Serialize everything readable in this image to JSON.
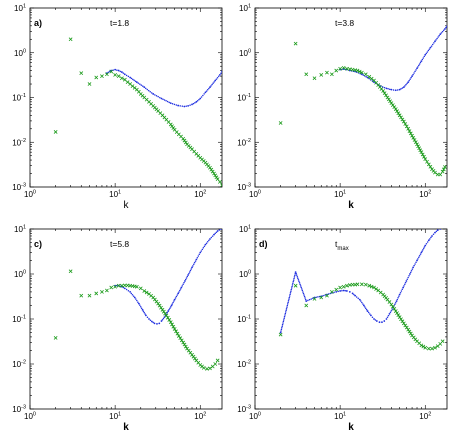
{
  "colors": {
    "blue_series": "#1f2fe0",
    "green_series": "#1a9a1a",
    "axis": "#000000"
  },
  "chart_data": [
    {
      "type": "scatter",
      "panel_label": "a)",
      "annotation": "t=1.8",
      "annotation_sub": "",
      "xlabel": "k",
      "xlabel_bold": false,
      "xscale": "log",
      "yscale": "log",
      "xlim": [
        1,
        180
      ],
      "ylim": [
        0.001,
        10
      ],
      "x_ticks": [
        "10^0",
        "10^1",
        "10^2"
      ],
      "y_ticks": [
        "10^-3",
        "10^-2",
        "10^-1",
        "10^0",
        "10^1"
      ],
      "grid": false,
      "series": [
        {
          "marker": "dot",
          "color": "#1f2fe0",
          "x": [
            8,
            9,
            10,
            11,
            12,
            13,
            15,
            18,
            22,
            28,
            35,
            45,
            55,
            65,
            72,
            80,
            90,
            100,
            115,
            130,
            150,
            170,
            180
          ],
          "y": [
            0.35,
            0.4,
            0.42,
            0.4,
            0.37,
            0.33,
            0.28,
            0.22,
            0.17,
            0.12,
            0.095,
            0.075,
            0.066,
            0.063,
            0.065,
            0.07,
            0.08,
            0.095,
            0.13,
            0.17,
            0.24,
            0.32,
            0.38
          ]
        },
        {
          "marker": "x",
          "color": "#1a9a1a",
          "x": [
            2,
            3,
            4,
            5,
            6,
            7,
            8,
            9,
            10,
            11,
            12,
            13,
            14,
            15,
            16,
            18,
            20,
            22,
            25,
            28,
            32,
            36,
            40,
            45,
            50,
            56,
            63,
            70,
            80,
            90,
            100,
            115,
            130,
            145,
            160,
            170,
            180
          ],
          "y": [
            0.017,
            2.0,
            0.35,
            0.2,
            0.28,
            0.3,
            0.33,
            0.38,
            0.32,
            0.3,
            0.27,
            0.25,
            0.22,
            0.2,
            0.18,
            0.15,
            0.12,
            0.1,
            0.08,
            0.065,
            0.05,
            0.04,
            0.032,
            0.025,
            0.019,
            0.015,
            0.012,
            0.009,
            0.007,
            0.0055,
            0.0045,
            0.0035,
            0.0027,
            0.002,
            0.0015,
            0.0013,
            0.0011
          ]
        }
      ]
    },
    {
      "type": "scatter",
      "panel_label": "",
      "annotation": "t=3.8",
      "annotation_sub": "",
      "xlabel": "k",
      "xlabel_bold": true,
      "xscale": "log",
      "yscale": "log",
      "xlim": [
        1,
        180
      ],
      "ylim": [
        0.001,
        10
      ],
      "x_ticks": [
        "10^0",
        "10^1",
        "10^2"
      ],
      "y_ticks": [
        "10^-3",
        "10^-2",
        "10^-1",
        "10^0",
        "10^1"
      ],
      "grid": false,
      "series": [
        {
          "marker": "dot",
          "color": "#1f2fe0",
          "x": [
            10,
            11,
            12,
            13,
            15,
            18,
            21,
            25,
            30,
            35,
            40,
            45,
            50,
            56,
            63,
            70,
            80,
            90,
            100,
            115,
            130,
            150,
            170,
            180
          ],
          "y": [
            0.42,
            0.43,
            0.42,
            0.4,
            0.38,
            0.33,
            0.28,
            0.22,
            0.18,
            0.16,
            0.15,
            0.145,
            0.15,
            0.17,
            0.22,
            0.3,
            0.45,
            0.65,
            0.9,
            1.3,
            1.8,
            2.6,
            3.4,
            3.9
          ]
        },
        {
          "marker": "x",
          "color": "#1a9a1a",
          "x": [
            2,
            3,
            4,
            5,
            6,
            7,
            8,
            9,
            10,
            11,
            12,
            13,
            14,
            15,
            16,
            18,
            20,
            22,
            25,
            28,
            32,
            36,
            40,
            45,
            50,
            56,
            63,
            70,
            80,
            90,
            100,
            110,
            120,
            130,
            140,
            150,
            160,
            170
          ],
          "y": [
            0.027,
            1.6,
            0.33,
            0.27,
            0.32,
            0.36,
            0.33,
            0.4,
            0.44,
            0.46,
            0.44,
            0.43,
            0.42,
            0.41,
            0.4,
            0.36,
            0.33,
            0.29,
            0.24,
            0.19,
            0.14,
            0.1,
            0.075,
            0.055,
            0.04,
            0.029,
            0.02,
            0.014,
            0.009,
            0.006,
            0.0042,
            0.0032,
            0.0025,
            0.0021,
            0.0019,
            0.0019,
            0.0022,
            0.0028
          ]
        }
      ]
    },
    {
      "type": "scatter",
      "panel_label": "c)",
      "annotation": "t=5.8",
      "annotation_sub": "",
      "xlabel": "k",
      "xlabel_bold": true,
      "xscale": "log",
      "yscale": "log",
      "xlim": [
        1,
        180
      ],
      "ylim": [
        0.001,
        10
      ],
      "x_ticks": [
        "10^0",
        "10^1",
        "10^2"
      ],
      "y_ticks": [
        "10^-3",
        "10^-2",
        "10^-1",
        "10^0",
        "10^1"
      ],
      "grid": false,
      "series": [
        {
          "marker": "dot",
          "color": "#1f2fe0",
          "x": [
            10,
            11,
            12,
            13,
            15,
            17,
            19,
            21,
            23,
            25,
            27,
            29,
            31,
            33,
            35,
            38,
            42,
            46,
            50,
            55,
            60,
            66,
            72,
            80,
            90,
            100,
            115,
            130,
            145,
            160,
            175
          ],
          "y": [
            0.55,
            0.55,
            0.52,
            0.48,
            0.4,
            0.3,
            0.22,
            0.16,
            0.12,
            0.1,
            0.088,
            0.08,
            0.078,
            0.08,
            0.09,
            0.11,
            0.15,
            0.2,
            0.27,
            0.37,
            0.5,
            0.7,
            0.95,
            1.4,
            2.1,
            3.0,
            4.5,
            6.0,
            7.5,
            9.0,
            10.0
          ]
        },
        {
          "marker": "x",
          "color": "#1a9a1a",
          "x": [
            2,
            3,
            4,
            5,
            6,
            7,
            8,
            9,
            10,
            11,
            12,
            13,
            14,
            15,
            16,
            18,
            20,
            22,
            25,
            28,
            32,
            36,
            40,
            45,
            50,
            56,
            63,
            70,
            80,
            90,
            100,
            110,
            120,
            130,
            140,
            150,
            160
          ],
          "y": [
            0.038,
            1.15,
            0.33,
            0.33,
            0.37,
            0.4,
            0.43,
            0.5,
            0.52,
            0.55,
            0.55,
            0.56,
            0.56,
            0.55,
            0.54,
            0.52,
            0.48,
            0.42,
            0.36,
            0.3,
            0.22,
            0.16,
            0.12,
            0.085,
            0.06,
            0.042,
            0.03,
            0.022,
            0.016,
            0.012,
            0.0095,
            0.0082,
            0.0078,
            0.008,
            0.0088,
            0.01,
            0.012
          ]
        }
      ]
    },
    {
      "type": "scatter",
      "panel_label": "d)",
      "annotation": "t",
      "annotation_sub": "max",
      "xlabel": "k",
      "xlabel_bold": true,
      "xscale": "log",
      "yscale": "log",
      "xlim": [
        1,
        180
      ],
      "ylim": [
        0.001,
        10
      ],
      "x_ticks": [
        "10^0",
        "10^1",
        "10^2"
      ],
      "y_ticks": [
        "10^-3",
        "10^-2",
        "10^-1",
        "10^0",
        "10^1"
      ],
      "grid": false,
      "series": [
        {
          "marker": "dot",
          "color": "#1f2fe0",
          "x": [
            2,
            3,
            4,
            5,
            6,
            7,
            8,
            9,
            10,
            11,
            12,
            13,
            14,
            15,
            17,
            19,
            21,
            23,
            25,
            27,
            29,
            31,
            33,
            35,
            38,
            42,
            46,
            50,
            55,
            60,
            66,
            72,
            80,
            90,
            100,
            110,
            120,
            130,
            140,
            150
          ],
          "y": [
            0.05,
            1.1,
            0.25,
            0.3,
            0.32,
            0.35,
            0.38,
            0.4,
            0.42,
            0.43,
            0.42,
            0.4,
            0.37,
            0.33,
            0.27,
            0.2,
            0.15,
            0.12,
            0.1,
            0.09,
            0.085,
            0.085,
            0.09,
            0.1,
            0.13,
            0.18,
            0.25,
            0.35,
            0.5,
            0.7,
            1.0,
            1.4,
            2.0,
            3.0,
            4.3,
            5.6,
            7.0,
            8.3,
            9.4,
            10.0
          ]
        },
        {
          "marker": "x",
          "color": "#1a9a1a",
          "x": [
            2,
            3,
            4,
            5,
            6,
            7,
            8,
            9,
            10,
            11,
            12,
            13,
            14,
            15,
            16,
            18,
            20,
            22,
            25,
            28,
            32,
            36,
            40,
            45,
            50,
            56,
            63,
            70,
            80,
            90,
            100,
            110,
            120,
            130,
            140,
            150,
            160
          ],
          "y": [
            0.045,
            0.55,
            0.2,
            0.28,
            0.3,
            0.33,
            0.4,
            0.45,
            0.5,
            0.52,
            0.55,
            0.57,
            0.58,
            0.58,
            0.59,
            0.59,
            0.58,
            0.55,
            0.5,
            0.43,
            0.35,
            0.27,
            0.21,
            0.15,
            0.11,
            0.08,
            0.058,
            0.043,
            0.032,
            0.026,
            0.023,
            0.022,
            0.022,
            0.023,
            0.025,
            0.028,
            0.032
          ]
        }
      ]
    }
  ]
}
